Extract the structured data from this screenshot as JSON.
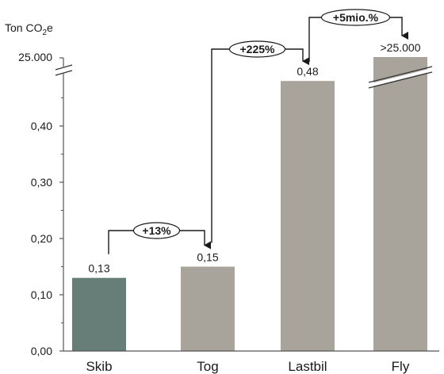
{
  "chart_data": {
    "type": "bar",
    "unit_label": {
      "base": "Ton CO",
      "sub": "2",
      "suffix": "e"
    },
    "categories": [
      "Skib",
      "Tog",
      "Lastbil",
      "Fly"
    ],
    "values": [
      0.13,
      0.15,
      0.48,
      25000
    ],
    "data_labels": [
      "0,13",
      "0,15",
      "0,48",
      ">25.000"
    ],
    "ylim": [
      0,
      0.5
    ],
    "axis_break": true,
    "y_ticks": [
      {
        "value": 0.0,
        "label": "0,00"
      },
      {
        "value": 0.1,
        "label": "0,10"
      },
      {
        "value": 0.2,
        "label": "0,20"
      },
      {
        "value": 0.3,
        "label": "0,30"
      },
      {
        "value": 0.4,
        "label": "0,40"
      }
    ],
    "y_break_label": "25.000",
    "grid": false,
    "colors": {
      "highlight": "#667d78",
      "bar": "#a8a39b",
      "axis": "#555555"
    },
    "annotations": [
      {
        "from": 0,
        "to": 1,
        "label": "+13%"
      },
      {
        "from": 1,
        "to": 2,
        "label": "+225%"
      },
      {
        "from": 2,
        "to": 3,
        "label": "+5mio.%"
      }
    ]
  }
}
